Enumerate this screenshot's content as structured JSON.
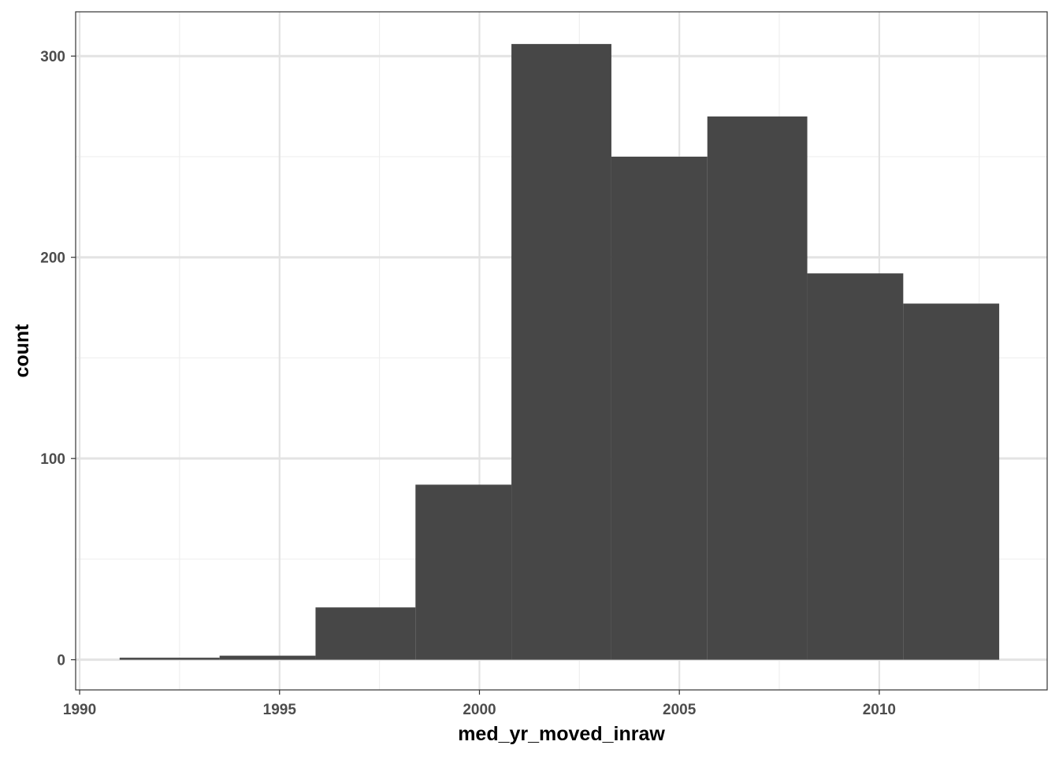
{
  "chart_data": {
    "type": "bar",
    "subtype": "histogram",
    "xlabel": "med_yr_moved_inraw",
    "ylabel": "count",
    "xlim": [
      1989.9,
      2014.2
    ],
    "ylim": [
      -15,
      322
    ],
    "x_ticks": [
      1990,
      1995,
      2000,
      2005,
      2010
    ],
    "x_tick_labels": [
      "1990",
      "1995",
      "2000",
      "2005",
      "2010"
    ],
    "y_ticks": [
      0,
      100,
      200,
      300
    ],
    "y_tick_labels": [
      "0",
      "100",
      "200",
      "300"
    ],
    "grid": true,
    "bins": [
      {
        "x0": 1991.0,
        "x1": 1993.5,
        "count": 1
      },
      {
        "x0": 1993.5,
        "x1": 1995.9,
        "count": 2
      },
      {
        "x0": 1995.9,
        "x1": 1998.4,
        "count": 26
      },
      {
        "x0": 1998.4,
        "x1": 2000.8,
        "count": 87
      },
      {
        "x0": 2000.8,
        "x1": 2003.3,
        "count": 306
      },
      {
        "x0": 2003.3,
        "x1": 2005.7,
        "count": 250
      },
      {
        "x0": 2005.7,
        "x1": 2008.2,
        "count": 270
      },
      {
        "x0": 2008.2,
        "x1": 2010.6,
        "count": 192
      },
      {
        "x0": 2010.6,
        "x1": 2013.0,
        "count": 177
      }
    ],
    "colors": {
      "bar_fill": "#474747",
      "grid_major": "#e3e3e3",
      "grid_minor": "#efefef",
      "panel_border": "#333333",
      "background": "#ffffff"
    }
  }
}
